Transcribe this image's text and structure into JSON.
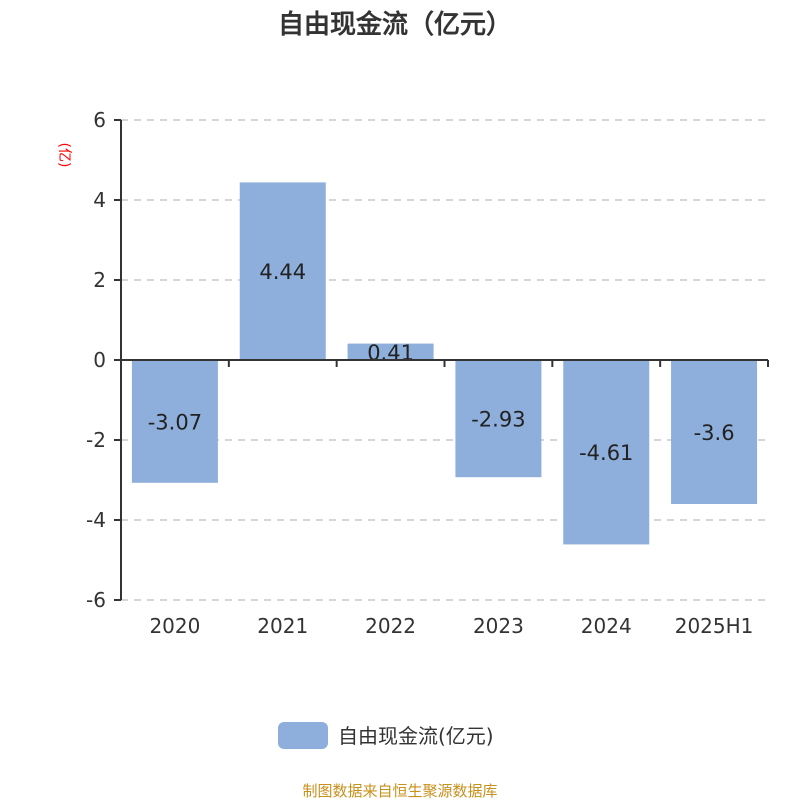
{
  "chart_data": {
    "type": "bar",
    "title": "自由现金流（亿元）",
    "ylabel": "(亿)",
    "categories": [
      "2020",
      "2021",
      "2022",
      "2023",
      "2024",
      "2025H1"
    ],
    "series": [
      {
        "name": "自由现金流(亿元)",
        "values": [
          -3.07,
          4.44,
          0.41,
          -2.93,
          -4.61,
          -3.6
        ],
        "labels": [
          "-3.07",
          "4.44",
          "0.41",
          "-2.93",
          "-4.61",
          "-3.6"
        ]
      }
    ],
    "ylim": [
      -6,
      6
    ],
    "yticks": [
      6,
      4,
      2,
      0,
      -2,
      -4,
      -6
    ],
    "grid": true,
    "legend": "bottom",
    "colors": {
      "bar": "#8eaedb",
      "ylabel": "#ff0000"
    }
  },
  "source": "制图数据来自恒生聚源数据库"
}
